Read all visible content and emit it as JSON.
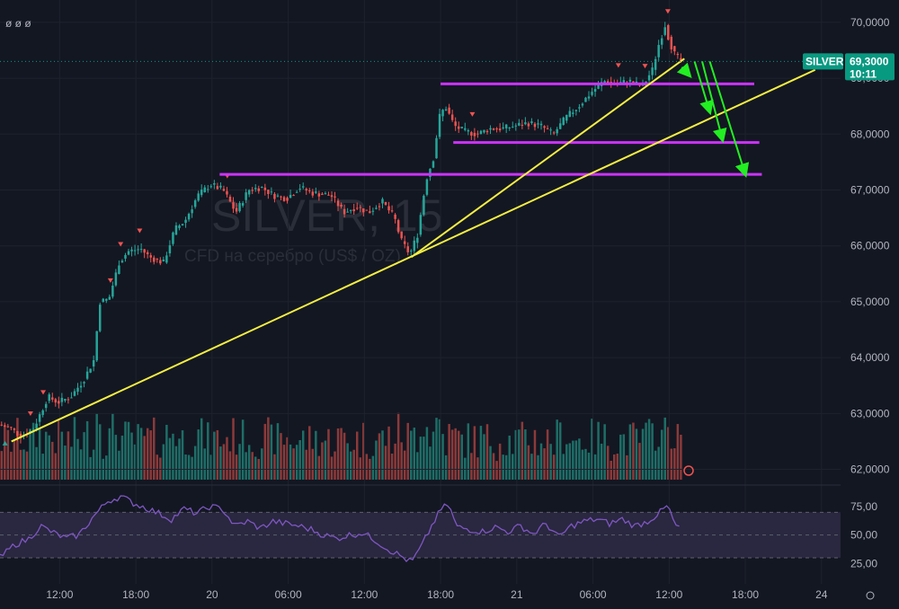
{
  "header": {
    "menu_glyph": "ø ø ø"
  },
  "watermark": {
    "symbol": "SILVER, 15",
    "description": "CFD на серебро (US$ / OZ)"
  },
  "colors": {
    "background": "#131722",
    "up": "#26a69a",
    "down": "#ef5350",
    "volume_up": "#1e6e67",
    "volume_down": "#8c3a3a",
    "trendline": "#f5ef42",
    "level": "#cc33ff",
    "arrow": "#22ee22",
    "rsi_line": "#7e57c2",
    "rsi_band": "#2a2740",
    "badge": "#089981"
  },
  "price_badge": {
    "symbol": "SILVER",
    "price": "69,3000",
    "countdown": "10:11"
  },
  "chart_data": {
    "type": "candlestick",
    "title": "",
    "interval": "15",
    "y_axis": {
      "ticks": [
        62.0,
        63.0,
        64.0,
        65.0,
        66.0,
        67.0,
        68.0,
        69.0,
        70.0
      ],
      "tick_labels": [
        "62,0000",
        "63,0000",
        "64,0000",
        "65,0000",
        "66,0000",
        "67,0000",
        "68,0000",
        "69,0000",
        "70,0000"
      ],
      "range": [
        61.8,
        70.4
      ]
    },
    "x_axis": {
      "ticks": [
        {
          "hour": 12,
          "label": "12:00"
        },
        {
          "hour": 18,
          "label": "18:00"
        },
        {
          "hour": 24,
          "label": "20"
        },
        {
          "hour": 30,
          "label": "06:00"
        },
        {
          "hour": 36,
          "label": "12:00"
        },
        {
          "hour": 42,
          "label": "18:00"
        },
        {
          "hour": 48,
          "label": "21"
        },
        {
          "hour": 54,
          "label": "06:00"
        },
        {
          "hour": 60,
          "label": "12:00"
        },
        {
          "hour": 66,
          "label": "18:00"
        },
        {
          "hour": 72,
          "label": "24"
        }
      ],
      "range_hours": [
        7.3,
        73.5
      ]
    },
    "price_path": [
      [
        7.3,
        62.8
      ],
      [
        8.2,
        62.75
      ],
      [
        9.0,
        62.6
      ],
      [
        10.0,
        62.7
      ],
      [
        10.5,
        62.95
      ],
      [
        11.2,
        63.3
      ],
      [
        12.0,
        63.2
      ],
      [
        13.0,
        63.3
      ],
      [
        14.0,
        63.6
      ],
      [
        14.8,
        63.95
      ],
      [
        15.3,
        65.0
      ],
      [
        16.0,
        65.05
      ],
      [
        16.8,
        65.7
      ],
      [
        17.5,
        65.9
      ],
      [
        18.5,
        65.95
      ],
      [
        19.2,
        65.8
      ],
      [
        20.3,
        65.7
      ],
      [
        21.2,
        66.3
      ],
      [
        22.0,
        66.45
      ],
      [
        23.0,
        66.9
      ],
      [
        24.0,
        67.1
      ],
      [
        25.0,
        67.0
      ],
      [
        26.0,
        66.6
      ],
      [
        27.0,
        67.0
      ],
      [
        28.0,
        67.05
      ],
      [
        29.0,
        66.9
      ],
      [
        30.0,
        66.85
      ],
      [
        31.0,
        67.05
      ],
      [
        32.0,
        66.95
      ],
      [
        33.5,
        66.9
      ],
      [
        34.5,
        66.6
      ],
      [
        35.5,
        66.7
      ],
      [
        36.5,
        66.6
      ],
      [
        37.5,
        66.8
      ],
      [
        38.5,
        66.5
      ],
      [
        39.0,
        66.1
      ],
      [
        39.7,
        65.85
      ],
      [
        40.3,
        66.2
      ],
      [
        41.0,
        67.2
      ],
      [
        41.6,
        67.6
      ],
      [
        42.0,
        68.3
      ],
      [
        42.5,
        68.5
      ],
      [
        43.2,
        68.15
      ],
      [
        44.0,
        68.05
      ],
      [
        45.0,
        68.0
      ],
      [
        46.0,
        68.1
      ],
      [
        47.0,
        68.1
      ],
      [
        48.0,
        68.15
      ],
      [
        49.0,
        68.2
      ],
      [
        50.0,
        68.15
      ],
      [
        51.0,
        68.0
      ],
      [
        52.0,
        68.3
      ],
      [
        53.0,
        68.5
      ],
      [
        54.0,
        68.75
      ],
      [
        55.0,
        68.95
      ],
      [
        56.0,
        68.9
      ],
      [
        57.0,
        68.95
      ],
      [
        58.0,
        68.85
      ],
      [
        58.8,
        69.15
      ],
      [
        59.3,
        69.6
      ],
      [
        59.8,
        69.95
      ],
      [
        60.1,
        69.7
      ],
      [
        60.5,
        69.45
      ],
      [
        61.0,
        69.3
      ]
    ],
    "sell_signals": [
      9.7,
      10.7,
      16.0,
      16.8,
      18.3,
      25.2,
      44.5,
      56.0,
      58.1,
      59.9
    ],
    "buy_signals": [
      7.7
    ],
    "trendlines": [
      {
        "from": [
          8.2,
          62.5
        ],
        "to": [
          71.5,
          69.15
        ]
      },
      {
        "from": [
          39.7,
          65.8
        ],
        "to": [
          61.2,
          69.35
        ]
      }
    ],
    "levels": [
      {
        "price": 68.9,
        "from_hour": 42.0,
        "to_hour": 66.7
      },
      {
        "price": 67.85,
        "from_hour": 43.0,
        "to_hour": 67.1
      },
      {
        "price": 67.28,
        "from_hour": 24.6,
        "to_hour": 67.3
      }
    ],
    "projection_arrows": [
      {
        "from": [
          61.0,
          69.2
        ],
        "to": [
          61.6,
          69.05
        ]
      },
      {
        "from": [
          62.0,
          69.3
        ],
        "to": [
          63.2,
          68.4
        ]
      },
      {
        "from": [
          62.6,
          69.3
        ],
        "to": [
          64.2,
          67.9
        ]
      },
      {
        "from": [
          63.2,
          69.3
        ],
        "to": [
          66.0,
          67.28
        ]
      }
    ],
    "last_price": 69.3,
    "volume": {
      "visible": true
    },
    "rsi": {
      "type": "line",
      "ticks": [
        25,
        50,
        75
      ],
      "tick_labels": [
        "25,00",
        "50,00",
        "75,00"
      ],
      "upper_band": 70,
      "lower_band": 30,
      "range": [
        15,
        90
      ],
      "path": [
        [
          7.3,
          30
        ],
        [
          8.5,
          42
        ],
        [
          9.5,
          46
        ],
        [
          10.5,
          58
        ],
        [
          11.5,
          52
        ],
        [
          12.5,
          47
        ],
        [
          13.5,
          50
        ],
        [
          14.8,
          68
        ],
        [
          15.8,
          80
        ],
        [
          16.8,
          84
        ],
        [
          17.8,
          78
        ],
        [
          18.8,
          74
        ],
        [
          19.8,
          69
        ],
        [
          20.8,
          64
        ],
        [
          21.8,
          73
        ],
        [
          22.8,
          69
        ],
        [
          23.8,
          75
        ],
        [
          24.8,
          73
        ],
        [
          25.8,
          58
        ],
        [
          26.8,
          62
        ],
        [
          27.8,
          56
        ],
        [
          28.8,
          62
        ],
        [
          29.8,
          60
        ],
        [
          30.8,
          58
        ],
        [
          31.8,
          55
        ],
        [
          32.8,
          50
        ],
        [
          33.8,
          47
        ],
        [
          34.8,
          50
        ],
        [
          35.8,
          52
        ],
        [
          36.8,
          46
        ],
        [
          37.8,
          38
        ],
        [
          38.8,
          32
        ],
        [
          39.7,
          26
        ],
        [
          40.5,
          40
        ],
        [
          41.3,
          58
        ],
        [
          42.0,
          72
        ],
        [
          42.6,
          77
        ],
        [
          43.3,
          57
        ],
        [
          44.3,
          55
        ],
        [
          45.3,
          53
        ],
        [
          46.3,
          57
        ],
        [
          47.3,
          53
        ],
        [
          48.3,
          58
        ],
        [
          49.3,
          51
        ],
        [
          50.3,
          60
        ],
        [
          51.3,
          48
        ],
        [
          52.3,
          58
        ],
        [
          53.3,
          62
        ],
        [
          54.3,
          64
        ],
        [
          55.3,
          60
        ],
        [
          56.3,
          64
        ],
        [
          57.3,
          58
        ],
        [
          58.3,
          62
        ],
        [
          59.3,
          70
        ],
        [
          59.9,
          76
        ],
        [
          60.4,
          60
        ],
        [
          61.0,
          53
        ]
      ]
    }
  }
}
